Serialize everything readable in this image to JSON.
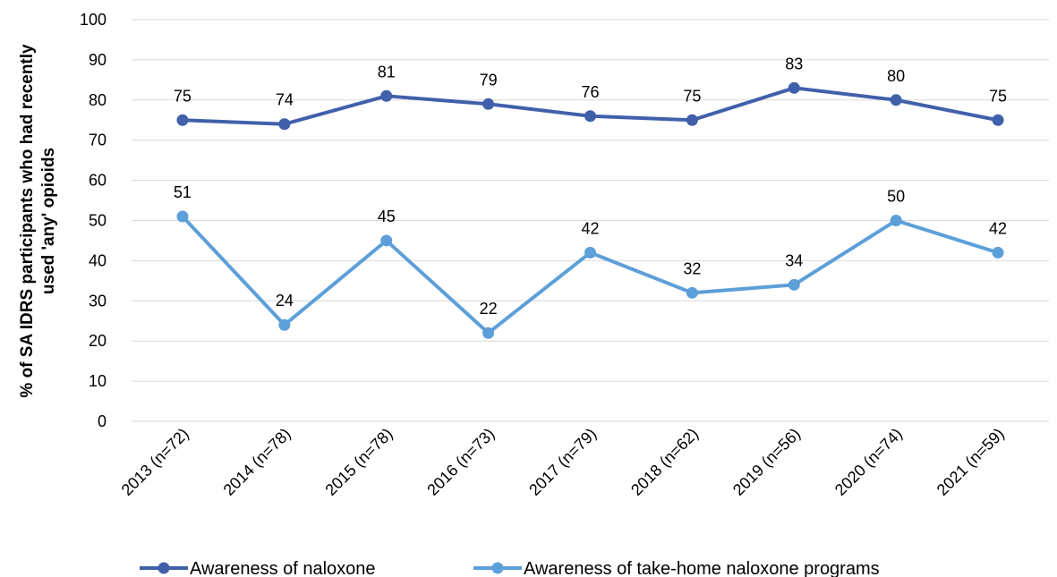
{
  "chart_data": {
    "type": "line",
    "categories": [
      "2013 (n=72)",
      "2014 (n=78)",
      "2015 (n=78)",
      "2016 (n=73)",
      "2017 (n=79)",
      "2018 (n=62)",
      "2019 (n=56)",
      "2020 (n=74)",
      "2021 (n=59)"
    ],
    "series": [
      {
        "name": "Awareness of naloxone",
        "values": [
          75,
          74,
          81,
          79,
          76,
          75,
          83,
          80,
          75
        ],
        "color": "#4060aa"
      },
      {
        "name": "Awareness of take-home naloxone programs",
        "values": [
          51,
          24,
          45,
          22,
          42,
          32,
          34,
          50,
          42
        ],
        "color": "#5d9fd8"
      }
    ],
    "ylabel_line1": "% of SA IDRS participants who had recently",
    "ylabel_line2": "used 'any' opioids",
    "ylim": [
      0,
      100
    ],
    "yticks": [
      "0",
      "10",
      "20",
      "30",
      "40",
      "50",
      "60",
      "70",
      "80",
      "90",
      "100"
    ],
    "grid": "horizontal",
    "data_labels": true,
    "legend_position": "bottom"
  }
}
